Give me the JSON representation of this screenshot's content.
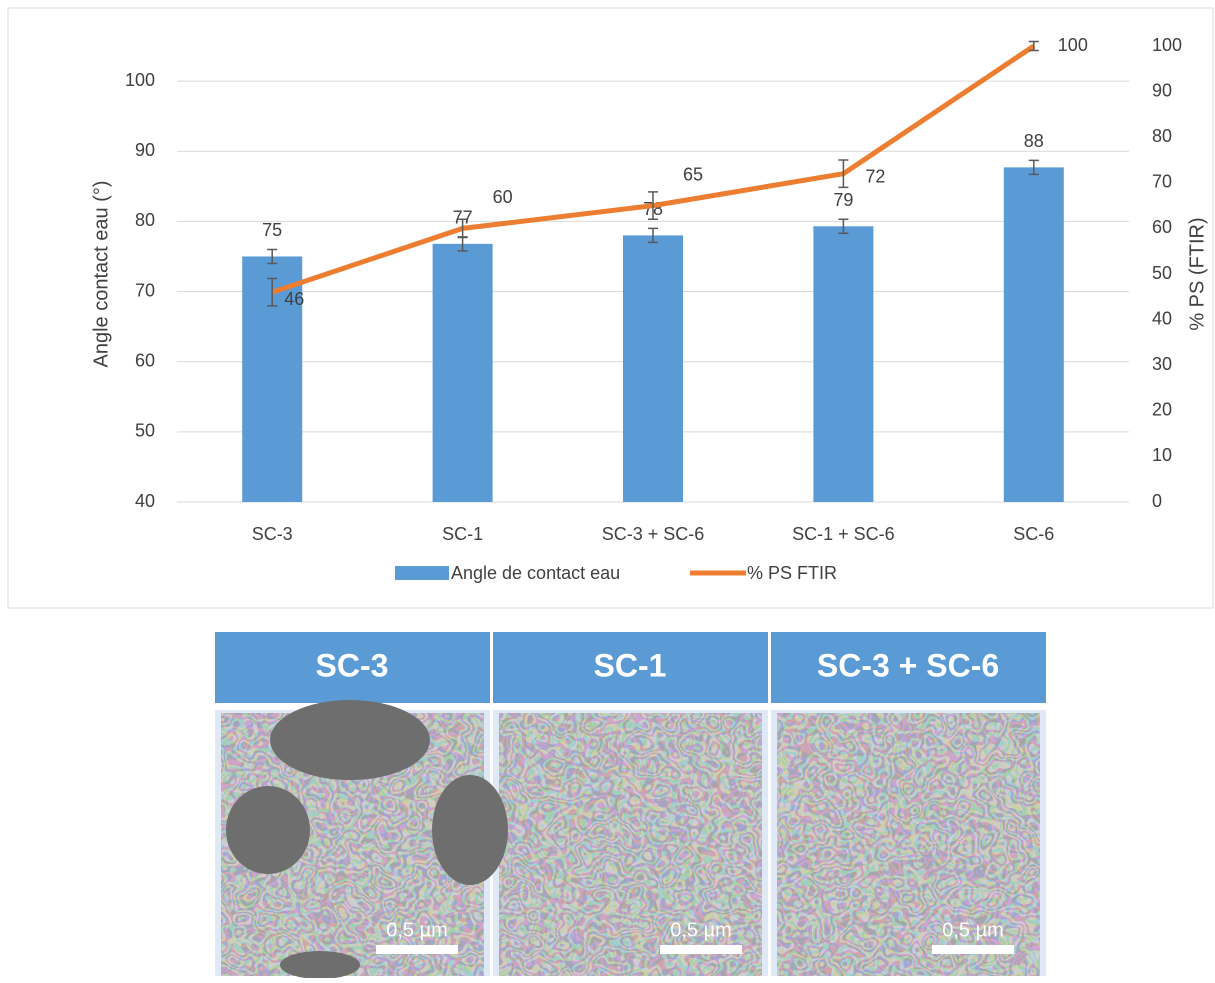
{
  "chart_data": {
    "type": "bar-line",
    "y_label": "Angle contact eau (°)",
    "y2_label": "% PS (FTIR)",
    "categories": [
      "SC-3",
      "SC-1",
      "SC-3 + SC-6",
      "SC-1 + SC-6",
      "SC-6"
    ],
    "series": [
      {
        "name": "Angle de contact eau",
        "type": "bar",
        "color": "#5b9bd5",
        "values": [
          75,
          76.8,
          78,
          79.3,
          87.7
        ],
        "value_labels": [
          "75",
          "77",
          "78",
          "79",
          "88"
        ],
        "errors": [
          1,
          1,
          1,
          1,
          1
        ]
      },
      {
        "name": "% PS FTIR",
        "type": "line",
        "axis": "y2",
        "color": "#ed7d31",
        "values": [
          46,
          60,
          65,
          72,
          100
        ],
        "errors": [
          3,
          2,
          3,
          3,
          1
        ]
      }
    ],
    "ylim": [
      40,
      105
    ],
    "yticks": [
      40,
      50,
      60,
      70,
      80,
      90,
      100
    ],
    "y2lim": [
      0,
      100
    ],
    "y2ticks": [
      0,
      10,
      20,
      30,
      40,
      50,
      60,
      70,
      80,
      90,
      100
    ],
    "grid": true,
    "legend": "bottom"
  },
  "panels": [
    {
      "label": "SC-3",
      "scale_label": "0,5 µm"
    },
    {
      "label": "SC-1",
      "scale_label": "0,5 µm"
    },
    {
      "label": "SC-3 + SC-6",
      "scale_label": "0,5 µm"
    }
  ]
}
